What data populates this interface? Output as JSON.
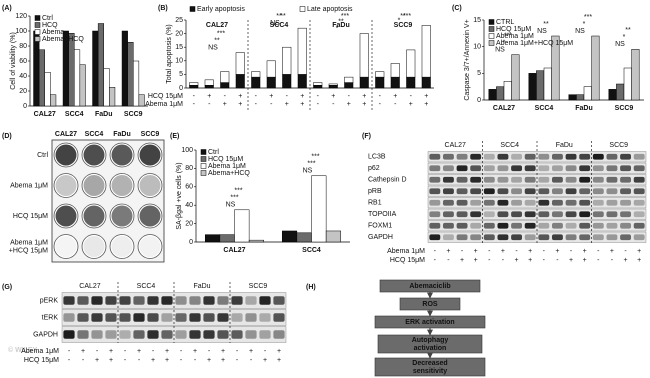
{
  "chart_data": [
    {
      "panel": "(A)",
      "type": "bar",
      "y_label": "Cell of viability (%)",
      "categories": [
        "CAL27",
        "SCC4",
        "FaDu",
        "SCC9"
      ],
      "series": [
        {
          "name": "Ctrl",
          "color": "#111111",
          "values": [
            100,
            100,
            100,
            100
          ]
        },
        {
          "name": "HCQ",
          "color": "#6b6b6b",
          "values": [
            75,
            97,
            110,
            85
          ]
        },
        {
          "name": "Abema",
          "color": "#ffffff",
          "values": [
            45,
            75,
            50,
            60
          ]
        },
        {
          "name": "Abema+HCQ",
          "color": "#c4c4c4",
          "values": [
            15,
            55,
            25,
            15
          ]
        }
      ],
      "ylim": [
        0,
        120
      ],
      "yticks": [
        0,
        20,
        40,
        60,
        80,
        100,
        120
      ],
      "legend": "upper left"
    },
    {
      "panel": "(B)",
      "type": "stacked_bar",
      "y_label": "Total apoptosis (%)",
      "categories": [
        null,
        null,
        null,
        null,
        null,
        null,
        null,
        null,
        null,
        null,
        null,
        null,
        null,
        null,
        null,
        null
      ],
      "groups": [
        "CAL27",
        "SCC4",
        "FaDu",
        "SCC9"
      ],
      "series": [
        {
          "name": "Early apoptosis",
          "color": "#111111",
          "values": [
            1,
            1,
            2,
            5,
            4,
            4,
            5,
            5,
            1,
            1,
            2,
            4,
            4,
            4,
            4,
            4
          ]
        },
        {
          "name": "Late apoptosis",
          "color": "#ffffff",
          "values": [
            1,
            2,
            4,
            8,
            2,
            6,
            10,
            17,
            1,
            0.5,
            2,
            16,
            2,
            5,
            10,
            19
          ]
        }
      ],
      "conditions": [
        {
          "label": "HCQ 15μM",
          "signs": [
            "-",
            "+",
            "-",
            "+",
            "-",
            "+",
            "-",
            "+",
            "-",
            "+",
            "-",
            "+",
            "-",
            "+",
            "-",
            "+"
          ]
        },
        {
          "label": "Abema 1μM",
          "signs": [
            "-",
            "-",
            "+",
            "+",
            "-",
            "-",
            "+",
            "+",
            "-",
            "-",
            "+",
            "+",
            "-",
            "-",
            "+",
            "+"
          ]
        }
      ],
      "significance": [
        [
          "NS",
          "**",
          "***"
        ],
        [
          "NS",
          "**",
          "**"
        ],
        [
          "*",
          "**",
          "***"
        ],
        [
          "*",
          "**",
          "***"
        ]
      ],
      "ylim": [
        0,
        25
      ],
      "yticks": [
        0,
        5,
        10,
        15,
        20,
        25
      ],
      "legend": "top"
    },
    {
      "panel": "(C)",
      "type": "bar",
      "y_label": "Caspase 3/7+/Annexin V+",
      "categories": [
        "CAL27",
        "SCC4",
        "FaDu",
        "SCC9"
      ],
      "series": [
        {
          "name": "CTRL",
          "color": "#111111",
          "values": [
            2,
            5,
            1,
            2
          ]
        },
        {
          "name": "HCQ 15μM",
          "color": "#6b6b6b",
          "values": [
            2.5,
            5.5,
            1,
            3
          ]
        },
        {
          "name": "Abema 1μM",
          "color": "#ffffff",
          "values": [
            3.5,
            6,
            2.5,
            6
          ]
        },
        {
          "name": "Abema 1μM+HCQ 15μM",
          "color": "#c4c4c4",
          "values": [
            8.5,
            12,
            12,
            9.5
          ]
        }
      ],
      "significance": [
        [
          "NS",
          "*",
          "***"
        ],
        [
          "NS",
          "**"
        ],
        [
          "NS",
          "*",
          "***"
        ],
        [
          "NS",
          "*",
          "**"
        ]
      ],
      "ylim": [
        0,
        15
      ],
      "yticks": [
        0,
        5,
        10,
        15
      ],
      "legend": "upper left"
    },
    {
      "panel": "(E)",
      "type": "bar",
      "y_label": "SA-βgal +ve cells (%)",
      "categories": [
        "CAL27",
        "SCC4"
      ],
      "series": [
        {
          "name": "Ctrl",
          "color": "#111111",
          "values": [
            8,
            12
          ]
        },
        {
          "name": "HCQ 15μM",
          "color": "#6b6b6b",
          "values": [
            8,
            10
          ]
        },
        {
          "name": "Abema 1μM",
          "color": "#ffffff",
          "values": [
            35,
            72
          ]
        },
        {
          "name": "Abema+HCQ",
          "color": "#c4c4c4",
          "values": [
            2,
            12
          ]
        }
      ],
      "significance": [
        [
          "NS",
          "***",
          "***"
        ],
        [
          "NS",
          "***",
          "***"
        ]
      ],
      "ylim": [
        0,
        100
      ],
      "yticks": [
        0,
        20,
        40,
        60,
        80,
        100
      ],
      "legend": "upper left"
    }
  ],
  "colony_assay": {
    "panel": "(D)",
    "columns": [
      "CAL27",
      "SCC4",
      "FaDu",
      "SCC9"
    ],
    "rows": [
      [
        "Ctrl"
      ],
      [
        "Abema 1μM"
      ],
      [
        "HCQ 15μM"
      ],
      [
        "Abema 1μM",
        "+HCQ 15μM"
      ]
    ]
  },
  "western_blot_f": {
    "panel": "(F)",
    "groups": [
      "CAL27",
      "SCC4",
      "FaDu",
      "SCC9"
    ],
    "rows": [
      "LC3B",
      "p62",
      "Cathepsin D",
      "pRB",
      "RB1",
      "TOPOIIA",
      "FOXM1",
      "GAPDH"
    ],
    "conditions": [
      {
        "label": "Abema 1μM",
        "signs": [
          "-",
          "+",
          "-",
          "+",
          "-",
          "+",
          "-",
          "+",
          "-",
          "+",
          "-",
          "+",
          "-",
          "+",
          "-",
          "+"
        ]
      },
      {
        "label": "HCQ 15μM",
        "signs": [
          "-",
          "-",
          "+",
          "+",
          "-",
          "-",
          "+",
          "+",
          "-",
          "-",
          "+",
          "+",
          "-",
          "-",
          "+",
          "+"
        ]
      }
    ]
  },
  "western_blot_g": {
    "panel": "(G)",
    "groups": [
      "CAL27",
      "SCC4",
      "FaDu",
      "SCC9"
    ],
    "rows": [
      "pERK",
      "tERK",
      "GAPDH"
    ],
    "conditions": [
      {
        "label": "Abema 1μM",
        "signs": [
          "-",
          "+",
          "-",
          "+",
          "-",
          "+",
          "-",
          "+",
          "-",
          "+",
          "-",
          "+",
          "-",
          "+",
          "-",
          "+"
        ]
      },
      {
        "label": "HCQ 15μM",
        "signs": [
          "-",
          "-",
          "+",
          "+",
          "-",
          "-",
          "+",
          "+",
          "-",
          "-",
          "+",
          "+",
          "-",
          "-",
          "+",
          "+"
        ]
      }
    ]
  },
  "diagram": {
    "panel": "(H)",
    "nodes": [
      {
        "lines": [
          "Abemaciclib"
        ]
      },
      {
        "lines": [
          "ROS"
        ]
      },
      {
        "lines": [
          "ERK activation"
        ]
      },
      {
        "lines": [
          "Autophagy",
          "activation"
        ]
      },
      {
        "lines": [
          "Decreased",
          "sensitivity"
        ]
      }
    ]
  },
  "watermark": "© WILEY"
}
